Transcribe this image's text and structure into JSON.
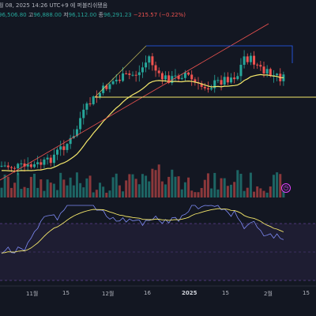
{
  "header": {
    "status_line": "월 08, 2025 14:26 UTC+9 에 퍼블리쉬됐음",
    "open_value": "96,506.80",
    "high_label": "고",
    "high_value": "96,888.00",
    "low_label": "저",
    "low_value": "96,112.00",
    "close_label": "종",
    "close_value": "96,291.23",
    "change": "−215.57 (−0.22%)"
  },
  "x_axis": {
    "labels": [
      "11월",
      "15",
      "12월",
      "16",
      "2025",
      "15",
      "2월",
      "15"
    ]
  },
  "colors": {
    "background": "#131722",
    "bull": "#26a69a",
    "bear": "#ef5350",
    "accent_blue": "#2962ff",
    "ma_line": "#f5e86b",
    "trend_red": "#ef5350",
    "rsi_band": "#7e57c2",
    "rsi_line": "#7e8bf5",
    "alert": "#e040fb"
  },
  "icons": {
    "alert": "alert-clock-icon"
  }
}
